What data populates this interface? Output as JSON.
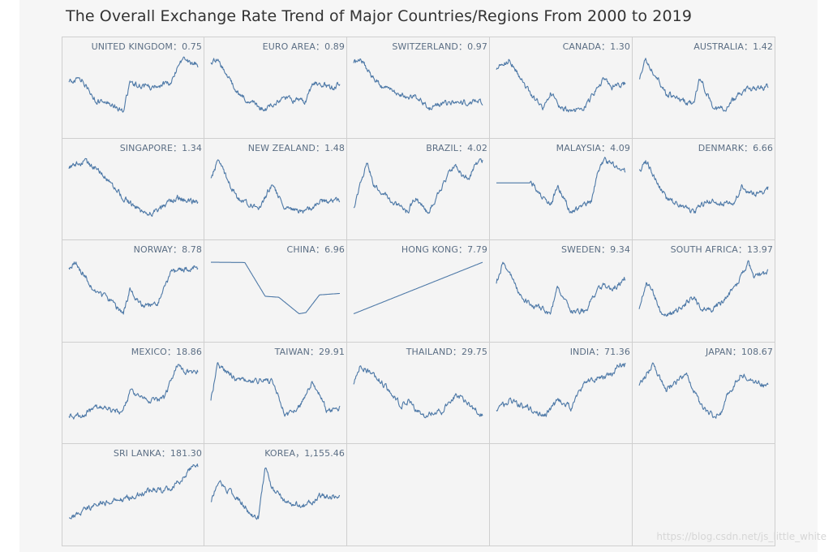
{
  "title": "The Overall Exchange Rate Trend of Major Countries/Regions  From 2000 to 2019",
  "watermark": "https://blog.csdn.net/js_little_white",
  "line_color": "#4e79a7",
  "chart_data": {
    "type": "line",
    "title": "The Overall Exchange Rate Trend of Major Countries/Regions  From 2000 to 2019",
    "x_range": [
      2000,
      2019
    ],
    "layout": "small-multiples 5 columns x 5 rows",
    "panels": [
      {
        "country": "UNITED KINGDOM",
        "label": "UNITED KINGDOM：0.75",
        "latest": 0.75,
        "x": [
          2000,
          2002,
          2004,
          2006,
          2008,
          2009,
          2012,
          2015,
          2016,
          2017,
          2019
        ],
        "y": [
          0.66,
          0.67,
          0.55,
          0.54,
          0.5,
          0.65,
          0.63,
          0.65,
          0.74,
          0.78,
          0.75
        ]
      },
      {
        "country": "EURO AREA",
        "label": "EURO AREA：0.89",
        "latest": 0.89,
        "x": [
          2000,
          2001,
          2004,
          2008,
          2010,
          2014,
          2015,
          2017,
          2018,
          2019
        ],
        "y": [
          1.07,
          1.12,
          0.8,
          0.64,
          0.75,
          0.72,
          0.9,
          0.88,
          0.85,
          0.89
        ]
      },
      {
        "country": "SWITZERLAND",
        "label": "SWITZERLAND：0.97",
        "latest": 0.97,
        "x": [
          2000,
          2001,
          2004,
          2008,
          2010,
          2011,
          2012,
          2015,
          2017,
          2019
        ],
        "y": [
          1.68,
          1.75,
          1.25,
          1.06,
          1.05,
          0.82,
          0.93,
          0.96,
          0.98,
          0.97
        ]
      },
      {
        "country": "CANADA",
        "label": "CANADA：1.30",
        "latest": 1.3,
        "x": [
          2000,
          2002,
          2004,
          2007,
          2008,
          2009,
          2011,
          2013,
          2016,
          2017,
          2019
        ],
        "y": [
          1.48,
          1.58,
          1.3,
          1.0,
          1.22,
          1.05,
          0.99,
          1.03,
          1.38,
          1.26,
          1.3
        ]
      },
      {
        "country": "AUSTRALIA",
        "label": "AUSTRALIA：1.42",
        "latest": 1.42,
        "x": [
          2000,
          2001,
          2004,
          2008,
          2009,
          2011,
          2013,
          2016,
          2019
        ],
        "y": [
          1.55,
          1.95,
          1.3,
          1.07,
          1.6,
          0.96,
          1.05,
          1.4,
          1.42
        ]
      },
      {
        "country": "SINGAPORE",
        "label": "SINGAPORE：1.34",
        "latest": 1.34,
        "x": [
          2000,
          2002,
          2005,
          2008,
          2011,
          2013,
          2016,
          2019
        ],
        "y": [
          1.72,
          1.8,
          1.66,
          1.4,
          1.24,
          1.25,
          1.4,
          1.34
        ]
      },
      {
        "country": "NEW ZEALAND",
        "label": "NEW ZEALAND：1.48",
        "latest": 1.48,
        "x": [
          2000,
          2001,
          2004,
          2007,
          2008,
          2009,
          2011,
          2014,
          2016,
          2019
        ],
        "y": [
          2.0,
          2.5,
          1.5,
          1.3,
          1.55,
          1.9,
          1.25,
          1.18,
          1.45,
          1.48
        ]
      },
      {
        "country": "BRAZIL",
        "label": "BRAZIL：4.02",
        "latest": 4.02,
        "x": [
          2000,
          2002,
          2003,
          2005,
          2008,
          2009,
          2011,
          2015,
          2016,
          2017,
          2018,
          2019
        ],
        "y": [
          1.8,
          3.95,
          2.9,
          2.3,
          1.6,
          2.3,
          1.6,
          3.95,
          3.3,
          3.2,
          3.9,
          4.02
        ]
      },
      {
        "country": "MALAYSIA",
        "label": "MALAYSIA：4.09",
        "latest": 4.09,
        "x": [
          2000,
          2005,
          2007,
          2008,
          2009,
          2011,
          2014,
          2015,
          2016,
          2019
        ],
        "y": [
          3.8,
          3.8,
          3.4,
          3.2,
          3.7,
          3.0,
          3.3,
          4.2,
          4.4,
          4.09
        ]
      },
      {
        "country": "DENMARK",
        "label": "DENMARK：6.66",
        "latest": 6.66,
        "x": [
          2000,
          2001,
          2004,
          2008,
          2010,
          2014,
          2015,
          2017,
          2019
        ],
        "y": [
          8.0,
          8.8,
          5.9,
          4.8,
          5.7,
          5.4,
          6.8,
          6.2,
          6.66
        ]
      },
      {
        "country": "NORWAY",
        "label": "NORWAY：8.78",
        "latest": 8.78,
        "x": [
          2000,
          2001,
          2004,
          2006,
          2008,
          2009,
          2011,
          2013,
          2015,
          2016,
          2019
        ],
        "y": [
          8.8,
          9.2,
          6.8,
          6.2,
          5.1,
          7.0,
          5.6,
          5.9,
          8.3,
          8.6,
          8.78
        ]
      },
      {
        "country": "CHINA",
        "label": "CHINA：6.96",
        "latest": 6.96,
        "x": [
          2000,
          2005,
          2008,
          2010,
          2013,
          2014,
          2016,
          2019
        ],
        "y": [
          8.28,
          8.27,
          6.84,
          6.8,
          6.1,
          6.15,
          6.9,
          6.96
        ]
      },
      {
        "country": "HONG KONG",
        "label": "HONG KONG：7.79",
        "latest": 7.79,
        "x": [
          2000,
          2019
        ],
        "y": [
          7.78,
          7.79
        ]
      },
      {
        "country": "SWEDEN",
        "label": "SWEDEN：9.34",
        "latest": 9.34,
        "x": [
          2000,
          2001,
          2004,
          2008,
          2009,
          2011,
          2013,
          2015,
          2016,
          2017,
          2019
        ],
        "y": [
          9.0,
          10.7,
          7.5,
          6.3,
          8.5,
          6.4,
          6.5,
          8.4,
          8.8,
          8.3,
          9.34
        ]
      },
      {
        "country": "SOUTH AFRICA",
        "label": "SOUTH AFRICA：13.97",
        "latest": 13.97,
        "x": [
          2000,
          2001,
          2002,
          2003,
          2005,
          2008,
          2009,
          2011,
          2014,
          2016,
          2017,
          2019
        ],
        "y": [
          6.9,
          12.0,
          10.5,
          7.0,
          6.3,
          9.5,
          7.5,
          7.2,
          10.8,
          15.8,
          13.0,
          13.97
        ]
      },
      {
        "country": "MEXICO",
        "label": "MEXICO：18.86",
        "latest": 18.86,
        "x": [
          2000,
          2002,
          2004,
          2008,
          2009,
          2012,
          2014,
          2016,
          2017,
          2019
        ],
        "y": [
          9.4,
          9.5,
          11.2,
          10.3,
          14.6,
          12.7,
          13.2,
          20.5,
          19.0,
          18.86
        ]
      },
      {
        "country": "TAIWAN",
        "label": "TAIWAN：29.91",
        "latest": 29.91,
        "x": [
          2000,
          2001,
          2004,
          2007,
          2009,
          2011,
          2013,
          2015,
          2017,
          2019
        ],
        "y": [
          31.0,
          34.8,
          33.0,
          32.9,
          33.0,
          29.0,
          30.0,
          32.8,
          29.8,
          29.91
        ]
      },
      {
        "country": "THAILAND",
        "label": "THAILAND：29.75",
        "latest": 29.75,
        "x": [
          2000,
          2001,
          2004,
          2007,
          2008,
          2010,
          2013,
          2015,
          2016,
          2019
        ],
        "y": [
          39.0,
          45.0,
          40.0,
          33.0,
          34.0,
          30.0,
          31.0,
          36.0,
          35.0,
          29.75
        ]
      },
      {
        "country": "INDIA",
        "label": "INDIA：71.36",
        "latest": 71.36,
        "x": [
          2000,
          2002,
          2005,
          2007,
          2009,
          2011,
          2013,
          2015,
          2017,
          2018,
          2019
        ],
        "y": [
          44.0,
          49.0,
          44.0,
          39.5,
          49.0,
          45.0,
          60.0,
          64.0,
          65.0,
          72.0,
          71.36
        ]
      },
      {
        "country": "JAPAN",
        "label": "JAPAN：108.67",
        "latest": 108.67,
        "x": [
          2000,
          2002,
          2004,
          2007,
          2009,
          2011,
          2012,
          2013,
          2015,
          2017,
          2019
        ],
        "y": [
          108,
          132,
          105,
          122,
          90,
          77,
          80,
          100,
          122,
          112,
          108.67
        ]
      },
      {
        "country": "SRI LANKA",
        "label": "SRI LANKA：181.30",
        "latest": 181.3,
        "x": [
          2000,
          2004,
          2008,
          2009,
          2012,
          2014,
          2016,
          2018,
          2019
        ],
        "y": [
          72,
          100,
          110,
          115,
          130,
          130,
          145,
          178,
          181.3
        ]
      },
      {
        "country": "KOREA",
        "label": "KOREA，1,155.46",
        "latest": 1155.46,
        "x": [
          2000,
          2001,
          2004,
          2006,
          2007,
          2008,
          2009,
          2011,
          2014,
          2016,
          2019
        ],
        "y": [
          1120,
          1320,
          1140,
          950,
          920,
          1500,
          1250,
          1100,
          1050,
          1160,
          1155.46
        ]
      }
    ]
  }
}
